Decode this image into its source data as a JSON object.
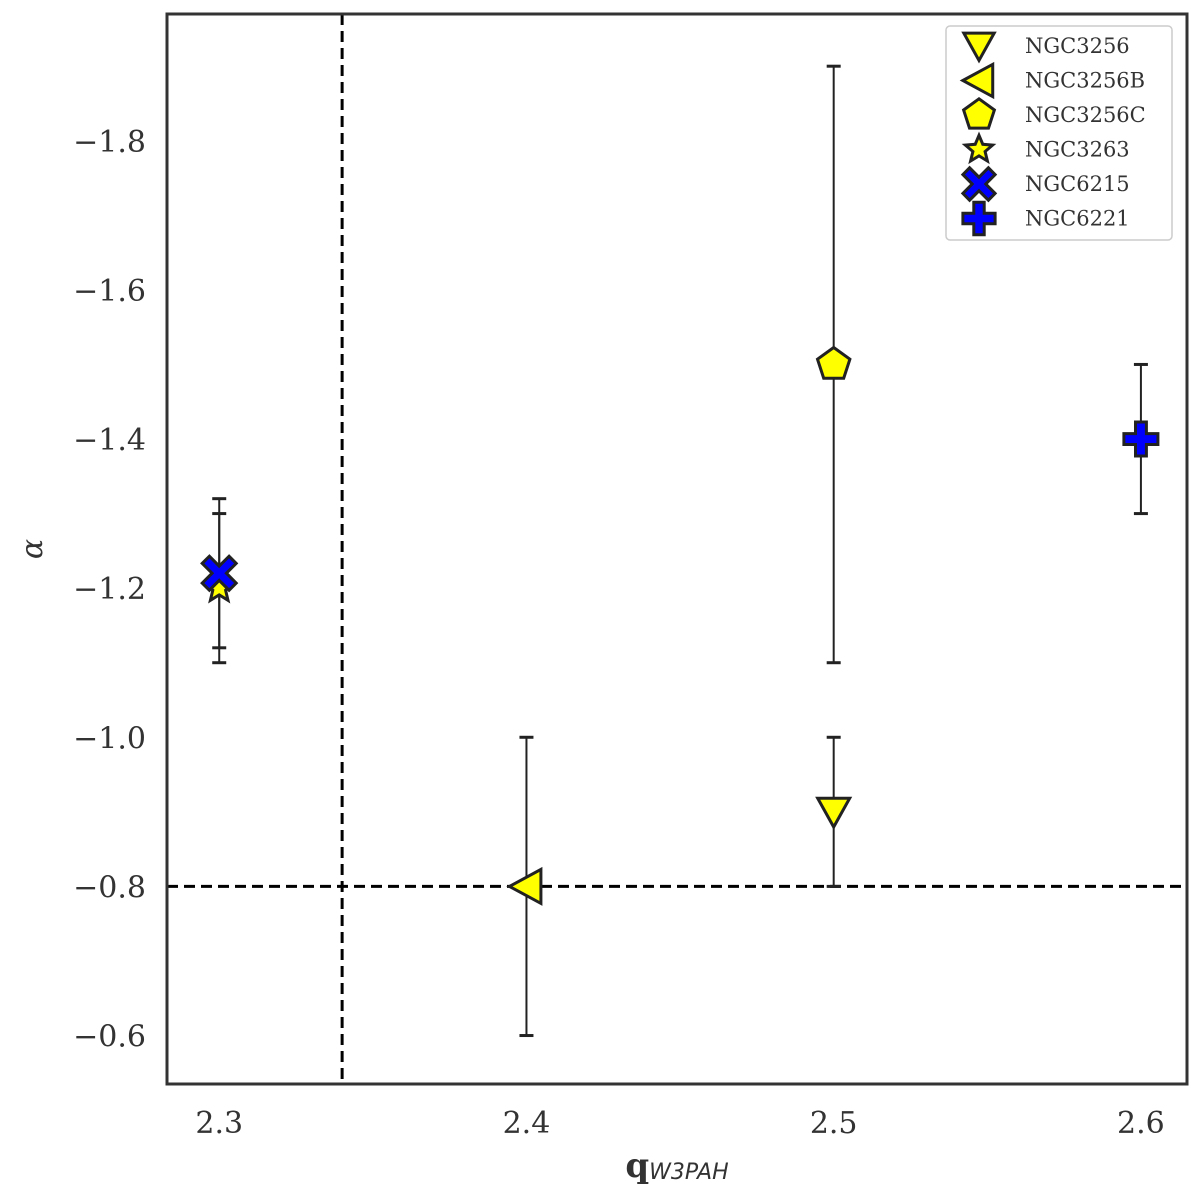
{
  "chart_data": {
    "type": "scatter",
    "title": "",
    "xlabel": {
      "main": "q",
      "subscript": "W3PAH"
    },
    "ylabel": "α",
    "xlim": [
      2.283,
      2.615
    ],
    "ylim": [
      -0.535,
      -1.97
    ],
    "y_inverted": true,
    "grid": false,
    "x_ticks": [
      2.3,
      2.4,
      2.5,
      2.6
    ],
    "x_tick_labels": [
      "2.3",
      "2.4",
      "2.5",
      "2.6"
    ],
    "y_ticks": [
      -0.6,
      -0.8,
      -1.0,
      -1.2,
      -1.4,
      -1.6,
      -1.8
    ],
    "y_tick_labels": [
      "−0.6",
      "−0.8",
      "−1.0",
      "−1.2",
      "−1.4",
      "−1.6",
      "−1.8"
    ],
    "reference_lines": [
      {
        "orientation": "vertical",
        "value": 2.34,
        "style": "dashed",
        "color": "#000000"
      },
      {
        "orientation": "horizontal",
        "value": -0.8,
        "style": "dashed",
        "color": "#000000"
      }
    ],
    "series": [
      {
        "name": "NGC3256",
        "x": 2.5,
        "y": -0.9,
        "y_err_low": -0.8,
        "y_err_high": -1.0,
        "marker": "triangle-down",
        "color": "#ffff00"
      },
      {
        "name": "NGC3256B",
        "x": 2.4,
        "y": -0.8,
        "y_err_low": -0.6,
        "y_err_high": -1.0,
        "marker": "triangle-left",
        "color": "#ffff00"
      },
      {
        "name": "NGC3256C",
        "x": 2.5,
        "y": -1.5,
        "y_err_low": -1.1,
        "y_err_high": -1.9,
        "marker": "pentagon",
        "color": "#ffff00"
      },
      {
        "name": "NGC3263",
        "x": 2.3,
        "y": -1.2,
        "y_err_low": -1.1,
        "y_err_high": -1.3,
        "marker": "star",
        "color": "#ffff00"
      },
      {
        "name": "NGC6215",
        "x": 2.3,
        "y": -1.22,
        "y_err_low": -1.12,
        "y_err_high": -1.32,
        "marker": "x-filled",
        "color": "#0000ff"
      },
      {
        "name": "NGC6221",
        "x": 2.6,
        "y": -1.4,
        "y_err_low": -1.3,
        "y_err_high": -1.5,
        "marker": "plus-filled",
        "color": "#0000ff"
      }
    ],
    "legend": {
      "position": "top-right"
    }
  }
}
